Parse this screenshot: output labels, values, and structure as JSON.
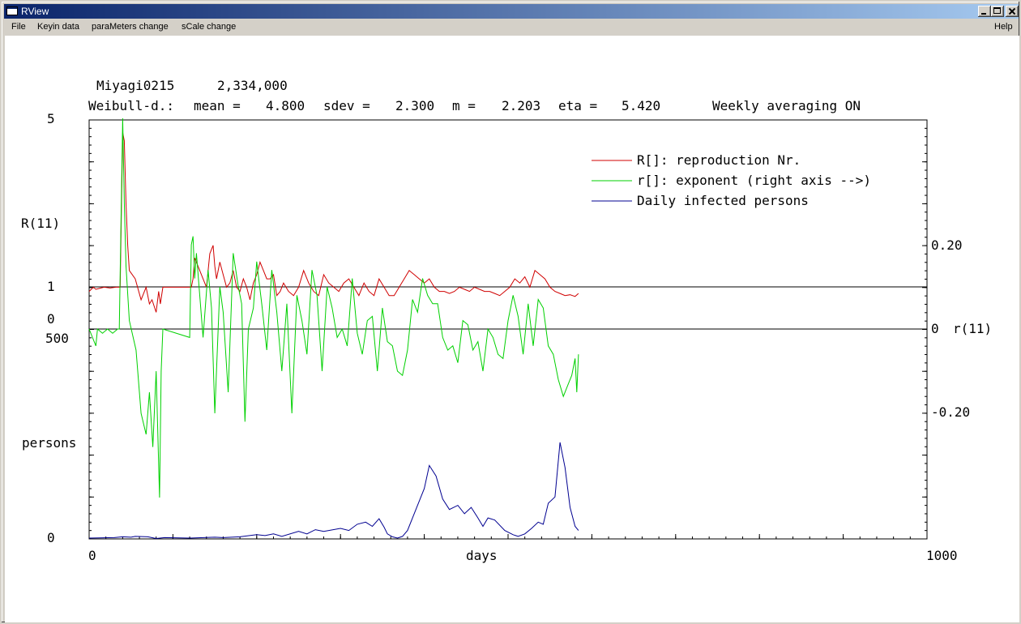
{
  "window": {
    "title": "RView",
    "controls": [
      "minimize",
      "maximize",
      "close"
    ]
  },
  "menu": {
    "file": "File",
    "keyin": "Keyin data",
    "parameters": "paraMeters change",
    "scale": "sCale change",
    "help": "Help"
  },
  "header": {
    "region": "Miyagi0215",
    "population": "2,334,000",
    "weibull_prefix": "Weibull-d.:",
    "mean_label": "mean =",
    "mean_value": "4.800",
    "sdev_label": "sdev =",
    "sdev_value": "2.300",
    "m_label": "m =",
    "m_value": "2.203",
    "eta_label": "eta =",
    "eta_value": "5.420",
    "averaging": "Weekly averaging ON"
  },
  "colors": {
    "reproduction": "#d00000",
    "exponent": "#00d000",
    "daily": "#000090",
    "axis": "#000000"
  },
  "chart_data": {
    "type": "line",
    "xlabel": "days",
    "x_tick_labels": [
      "0",
      "1000"
    ],
    "xlim": [
      0,
      1000
    ],
    "left_axis_labels": {
      "r_top": "5",
      "r_name": "R(11)",
      "r_one": "1",
      "r_zero": "0",
      "p_top": "500",
      "p_name": "persons",
      "p_zero": "0"
    },
    "right_axis_labels": {
      "plus": "0.20",
      "zero": "0",
      "name": "r(11)",
      "minus": "-0.20"
    },
    "ylim_R": [
      0,
      5
    ],
    "ylim_r": [
      -0.5,
      0.5
    ],
    "ylim_persons": [
      0,
      500
    ],
    "legend": [
      {
        "key": "R",
        "label": "R[]: reproduction Nr."
      },
      {
        "key": "r",
        "label": "r[]: exponent (right axis -->)"
      },
      {
        "key": "daily",
        "label": "Daily infected persons"
      }
    ],
    "series": [
      {
        "name": "R[]: reproduction Nr.",
        "key": "R",
        "x": [
          0,
          5,
          8,
          14,
          18,
          25,
          32,
          37,
          40,
          42,
          44,
          46,
          48,
          55,
          62,
          68,
          72,
          75,
          80,
          83,
          85,
          88,
          122,
          124,
          126,
          128,
          132,
          136,
          140,
          144,
          148,
          150,
          152,
          156,
          160,
          164,
          168,
          172,
          176,
          180,
          184,
          188,
          192,
          196,
          200,
          204,
          208,
          212,
          216,
          220,
          224,
          228,
          232,
          238,
          244,
          250,
          256,
          262,
          268,
          274,
          280,
          286,
          292,
          298,
          304,
          310,
          316,
          322,
          328,
          334,
          340,
          346,
          352,
          358,
          364,
          370,
          376,
          382,
          388,
          394,
          400,
          406,
          412,
          418,
          424,
          430,
          436,
          442,
          448,
          454,
          460,
          466,
          472,
          478,
          484,
          490,
          496,
          502,
          508,
          514,
          520,
          526,
          532,
          538,
          544,
          550,
          556,
          562,
          568,
          574,
          580,
          584
        ],
        "values": [
          0.9,
          1.0,
          0.95,
          0.98,
          1.0,
          0.98,
          1.0,
          1.0,
          4.7,
          4.5,
          3.0,
          2.0,
          1.4,
          1.2,
          0.7,
          1.0,
          0.6,
          0.7,
          0.4,
          0.9,
          0.6,
          1.0,
          1.0,
          1.2,
          1.7,
          1.6,
          1.4,
          1.2,
          1.0,
          1.8,
          2.0,
          1.5,
          1.2,
          1.6,
          1.3,
          1.0,
          1.1,
          1.4,
          1.0,
          0.9,
          1.2,
          1.0,
          0.7,
          1.1,
          1.3,
          1.6,
          1.4,
          1.2,
          1.2,
          1.3,
          0.8,
          0.9,
          1.1,
          0.9,
          0.8,
          1.0,
          1.4,
          1.1,
          0.9,
          0.8,
          1.3,
          1.1,
          1.0,
          0.9,
          1.1,
          1.2,
          1.0,
          0.8,
          1.1,
          0.9,
          0.8,
          1.2,
          1.0,
          0.8,
          0.8,
          1.0,
          1.2,
          1.4,
          1.3,
          1.2,
          1.1,
          1.2,
          1.0,
          0.9,
          0.9,
          0.85,
          0.9,
          1.0,
          0.95,
          0.9,
          1.0,
          0.95,
          0.9,
          0.9,
          0.85,
          0.8,
          0.9,
          1.0,
          1.2,
          1.1,
          1.25,
          1.0,
          1.4,
          1.3,
          1.2,
          1.0,
          0.9,
          0.85,
          0.8,
          0.82,
          0.78,
          0.85
        ]
      },
      {
        "name": "r[]: exponent (right axis -->)",
        "key": "r",
        "x": [
          0,
          8,
          10,
          16,
          22,
          28,
          34,
          36,
          40,
          42,
          44,
          48,
          56,
          62,
          68,
          72,
          76,
          80,
          84,
          86,
          88,
          120,
          122,
          124,
          126,
          128,
          132,
          136,
          142,
          146,
          150,
          156,
          160,
          166,
          172,
          178,
          182,
          186,
          190,
          196,
          200,
          206,
          212,
          218,
          224,
          230,
          236,
          242,
          248,
          254,
          260,
          266,
          272,
          278,
          284,
          290,
          296,
          302,
          308,
          314,
          320,
          326,
          332,
          338,
          344,
          350,
          356,
          362,
          368,
          374,
          380,
          386,
          392,
          398,
          404,
          410,
          416,
          422,
          428,
          434,
          440,
          446,
          452,
          458,
          464,
          470,
          476,
          482,
          488,
          494,
          500,
          506,
          512,
          518,
          524,
          530,
          536,
          542,
          548,
          554,
          560,
          566,
          572,
          576,
          580,
          582,
          584
        ],
        "values": [
          0.0,
          -0.04,
          0.0,
          -0.01,
          0.0,
          -0.01,
          0.0,
          0.0,
          0.5,
          0.3,
          0.15,
          0.02,
          -0.05,
          -0.2,
          -0.25,
          -0.15,
          -0.28,
          -0.1,
          -0.4,
          -0.1,
          0.0,
          -0.02,
          0.2,
          0.22,
          0.12,
          0.18,
          0.08,
          -0.02,
          0.14,
          0.05,
          -0.2,
          0.1,
          0.04,
          -0.15,
          0.18,
          0.1,
          0.06,
          -0.22,
          0.0,
          0.05,
          0.16,
          0.06,
          -0.05,
          0.14,
          0.04,
          -0.1,
          0.06,
          -0.2,
          0.08,
          0.02,
          -0.06,
          0.14,
          0.08,
          -0.1,
          0.1,
          0.05,
          -0.02,
          0.0,
          -0.04,
          0.12,
          -0.01,
          -0.06,
          0.02,
          0.03,
          -0.1,
          0.05,
          -0.03,
          -0.04,
          -0.1,
          -0.11,
          -0.05,
          0.07,
          0.04,
          0.12,
          0.08,
          0.06,
          0.06,
          -0.02,
          -0.05,
          -0.04,
          -0.08,
          0.02,
          0.01,
          -0.05,
          -0.03,
          -0.1,
          0.0,
          -0.02,
          -0.06,
          -0.07,
          0.02,
          0.08,
          0.03,
          -0.06,
          0.06,
          -0.04,
          0.07,
          0.05,
          -0.04,
          -0.06,
          -0.12,
          -0.16,
          -0.13,
          -0.11,
          -0.07,
          -0.15,
          -0.06
        ]
      },
      {
        "name": "Daily infected persons",
        "key": "daily",
        "x": [
          0,
          30,
          40,
          50,
          55,
          70,
          80,
          90,
          120,
          150,
          160,
          180,
          200,
          210,
          220,
          230,
          250,
          260,
          270,
          280,
          300,
          310,
          320,
          330,
          338,
          346,
          352,
          356,
          362,
          368,
          374,
          380,
          386,
          392,
          400,
          406,
          414,
          422,
          430,
          440,
          448,
          456,
          464,
          470,
          476,
          484,
          496,
          506,
          512,
          520,
          528,
          536,
          542,
          548,
          556,
          562,
          568,
          574,
          580,
          584
        ],
        "values": [
          2,
          3,
          5,
          4,
          6,
          5,
          1,
          3,
          2,
          4,
          3,
          5,
          10,
          8,
          12,
          6,
          18,
          12,
          22,
          18,
          25,
          20,
          35,
          40,
          30,
          48,
          28,
          12,
          5,
          2,
          6,
          20,
          50,
          80,
          120,
          175,
          150,
          95,
          70,
          80,
          60,
          75,
          50,
          30,
          50,
          45,
          20,
          10,
          6,
          12,
          25,
          40,
          35,
          85,
          100,
          230,
          170,
          75,
          30,
          20
        ]
      }
    ]
  }
}
